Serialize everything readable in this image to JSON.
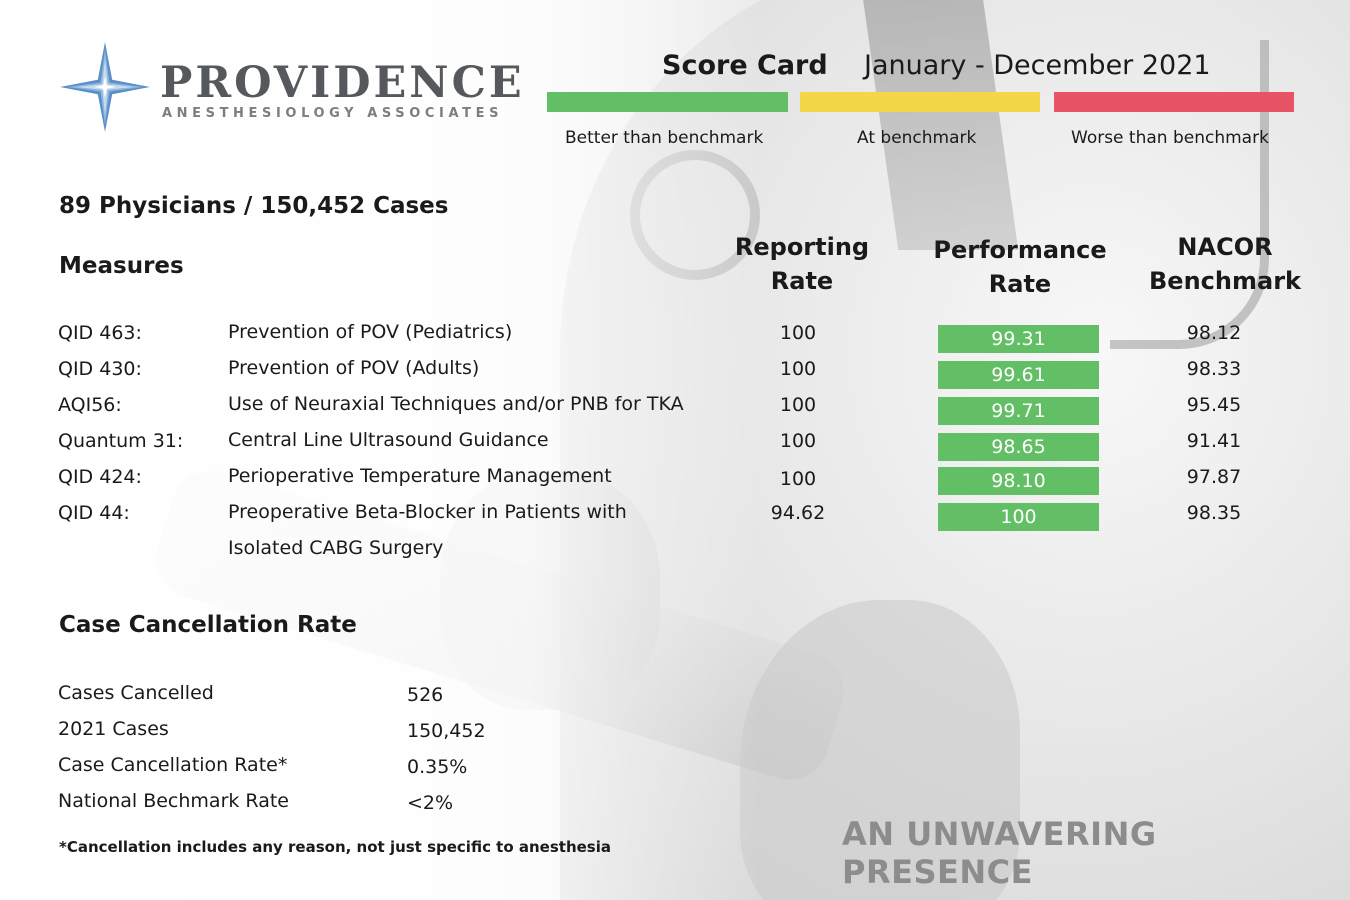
{
  "logo": {
    "name": "PROVIDENCE",
    "subtitle": "ANESTHESIOLOGY ASSOCIATES"
  },
  "header": {
    "title": "Score Card",
    "period": "January - December 2021"
  },
  "legend": [
    {
      "label": "Better than benchmark",
      "color": "#62bf65"
    },
    {
      "label": "At benchmark",
      "color": "#f3d64a"
    },
    {
      "label": "Worse than benchmark",
      "color": "#e85466"
    }
  ],
  "summary": "89 Physicians / 150,452 Cases",
  "measures": {
    "heading": "Measures",
    "col_reporting": [
      "Reporting",
      "Rate"
    ],
    "col_performance": [
      "Performance",
      "Rate"
    ],
    "col_nacor": [
      "NACOR",
      "Benchmark"
    ],
    "rows": [
      {
        "id": "QID 463:",
        "desc": "Prevention of POV (Pediatrics)",
        "reporting": "100",
        "performance": "99.31",
        "nacor": "98.12"
      },
      {
        "id": "QID 430:",
        "desc": "Prevention of POV (Adults)",
        "reporting": "100",
        "performance": "99.61",
        "nacor": "98.33"
      },
      {
        "id": "AQI56:",
        "desc": "Use of Neuraxial Techniques and/or PNB for TKA",
        "reporting": "100",
        "performance": "99.71",
        "nacor": "95.45"
      },
      {
        "id": "Quantum 31:",
        "desc": "Central Line Ultrasound Guidance",
        "reporting": "100",
        "performance": "98.65",
        "nacor": "91.41"
      },
      {
        "id": "QID 424:",
        "desc": "Perioperative Temperature Management",
        "reporting": "100",
        "performance": "98.10",
        "nacor": "97.87"
      },
      {
        "id": "QID 44:",
        "desc": "Preoperative Beta-Blocker in Patients with",
        "desc2": "Isolated CABG Surgery",
        "reporting": "94.62",
        "performance": "100",
        "nacor": "98.35"
      }
    ]
  },
  "cancellation": {
    "heading": "Case Cancellation Rate",
    "rows": [
      {
        "label": "Cases Cancelled",
        "value": "526"
      },
      {
        "label": "2021 Cases",
        "value": "150,452"
      },
      {
        "label": "Case Cancellation Rate*",
        "value": "0.35%"
      },
      {
        "label": "National Bechmark Rate",
        "value": "<2%"
      }
    ],
    "footnote": "*Cancellation includes any reason, not just specific to anesthesia"
  },
  "tagline": "AN UNWAVERING PRESENCE"
}
